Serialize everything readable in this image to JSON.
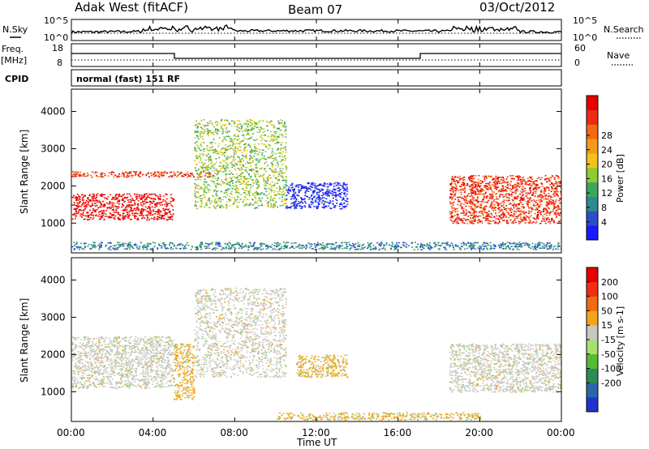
{
  "header": {
    "station": "Adak West (fitACF)",
    "beam": "Beam 07",
    "date": "03/Oct/2012"
  },
  "noise_panel": {
    "left_label": "N.Sky",
    "right_label": "N.Search",
    "left_ticks": [
      "10^5",
      "10^0"
    ],
    "right_ticks": [
      "10^5",
      "10^0"
    ]
  },
  "freq_panel": {
    "left_label_top": "Freq.",
    "left_label_unit": "[MHz]",
    "right_label": "Nave",
    "left_ticks": [
      "18",
      "8"
    ],
    "right_ticks": [
      "60",
      "0"
    ]
  },
  "cpid_panel": {
    "label": "CPID",
    "text": "normal (fast) 151 RF"
  },
  "chart_data": [
    {
      "type": "heatmap",
      "panel": "power",
      "ylabel": "Slant Range [km]",
      "y_ticks": [
        "1000",
        "2000",
        "3000",
        "4000"
      ],
      "ylim": [
        200,
        4600
      ],
      "x_ticks": [
        "00:00",
        "04:00",
        "08:00",
        "12:00",
        "16:00",
        "20:00",
        "00:00"
      ],
      "xlim_hours": [
        0,
        24
      ],
      "colorbar": {
        "label": "Power [dB]",
        "ticks": [
          "4",
          "8",
          "12",
          "16",
          "20",
          "24",
          "28"
        ],
        "colors": [
          "#1a1aff",
          "#2a4fc8",
          "#2e8b8b",
          "#3da65c",
          "#8fcc33",
          "#f2c11a",
          "#f59a1a",
          "#f26a12",
          "#ee2a10",
          "#e60000"
        ]
      },
      "features": [
        {
          "start": "00:00",
          "end": "05:00",
          "range_km": [
            1100,
            1800
          ],
          "power_db": 30
        },
        {
          "start": "00:00",
          "end": "07:00",
          "range_km": [
            2250,
            2400
          ],
          "power_db": 28
        },
        {
          "start": "06:00",
          "end": "10:30",
          "range_km": [
            1400,
            3800
          ],
          "power_db": 14
        },
        {
          "start": "10:30",
          "end": "13:30",
          "range_km": [
            1400,
            2100
          ],
          "power_db": 4
        },
        {
          "start": "18:30",
          "end": "24:00",
          "range_km": [
            1000,
            2300
          ],
          "power_db": 28
        },
        {
          "start": "00:00",
          "end": "24:00",
          "range_km": [
            300,
            500
          ],
          "power_db": 10
        }
      ]
    },
    {
      "type": "heatmap",
      "panel": "velocity",
      "ylabel": "Slant Range [km]",
      "y_ticks": [
        "1000",
        "2000",
        "3000",
        "4000"
      ],
      "ylim": [
        200,
        4600
      ],
      "x_ticks": [
        "00:00",
        "04:00",
        "08:00",
        "12:00",
        "16:00",
        "20:00",
        "00:00"
      ],
      "xlabel": "Time UT",
      "xlim_hours": [
        0,
        24
      ],
      "colorbar": {
        "label": "Velocity [m s-1]",
        "ticks": [
          "200",
          "100",
          "50",
          "15",
          "-15",
          "-50",
          "-100",
          "-200"
        ],
        "colors": [
          "#2233cc",
          "#2b66aa",
          "#2e8b57",
          "#55bb33",
          "#a8e070",
          "#c8c8c0",
          "#f2a41a",
          "#f26a12",
          "#ee3010",
          "#e60000"
        ]
      },
      "features": [
        {
          "start": "00:00",
          "end": "05:00",
          "range_km": [
            1100,
            2500
          ],
          "velocity": 0
        },
        {
          "start": "05:00",
          "end": "06:00",
          "range_km": [
            800,
            2300
          ],
          "velocity": -50
        },
        {
          "start": "06:00",
          "end": "10:30",
          "range_km": [
            1400,
            3800
          ],
          "velocity": 0
        },
        {
          "start": "11:00",
          "end": "13:30",
          "range_km": [
            1400,
            2000
          ],
          "velocity": -40
        },
        {
          "start": "18:30",
          "end": "24:00",
          "range_km": [
            1000,
            2300
          ],
          "velocity": 0
        },
        {
          "start": "10:00",
          "end": "20:00",
          "range_km": [
            250,
            450
          ],
          "velocity": -60
        }
      ]
    }
  ]
}
